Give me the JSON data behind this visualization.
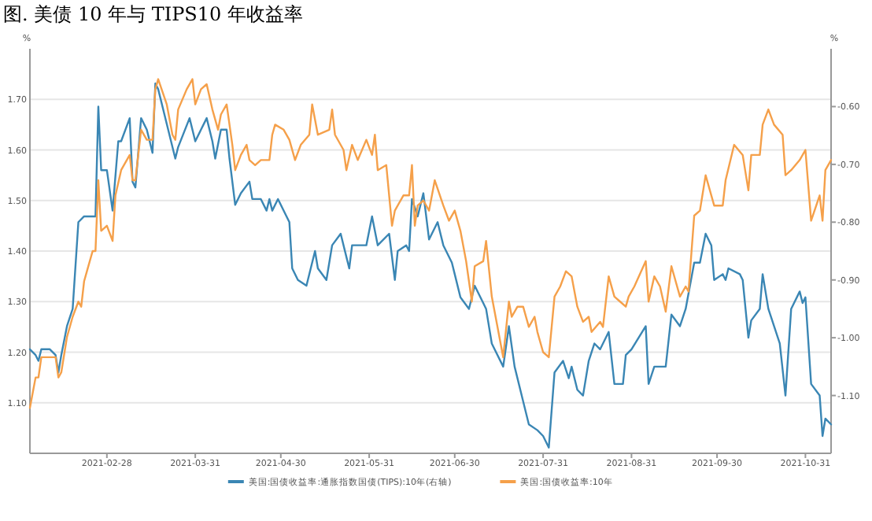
{
  "chart_data": {
    "type": "line",
    "title": "图. 美债 10 年与 TIPS10 年收益率",
    "ylabel": "%",
    "y2label": "%",
    "legend": "bottom",
    "grid": "y",
    "marker": "none",
    "line_style": "solid",
    "xlim": [
      "2021-02-01",
      "2021-11-09"
    ],
    "xticks": [
      "2021-02-28",
      "2021-03-31",
      "2021-04-30",
      "2021-05-31",
      "2021-06-30",
      "2021-07-31",
      "2021-08-31",
      "2021-09-30",
      "2021-10-31"
    ],
    "ylim": [
      1.0,
      1.8
    ],
    "yticks": [
      {
        "value": 1.1,
        "label": "1.10"
      },
      {
        "value": 1.2,
        "label": "1.20"
      },
      {
        "value": 1.3,
        "label": "1.30"
      },
      {
        "value": 1.4,
        "label": "1.40"
      },
      {
        "value": 1.5,
        "label": "1.50"
      },
      {
        "value": 1.6,
        "label": "1.60"
      },
      {
        "value": 1.7,
        "label": "1.70"
      }
    ],
    "y2lim": [
      -1.2,
      -0.5
    ],
    "y2ticks": [
      {
        "value": -1.1,
        "label": "-1.10"
      },
      {
        "value": -1.0,
        "label": "-1.00"
      },
      {
        "value": -0.9,
        "label": "-0.90"
      },
      {
        "value": -0.8,
        "label": "-0.80"
      },
      {
        "value": -0.7,
        "label": "-0.70"
      },
      {
        "value": -0.6,
        "label": "-0.60"
      }
    ],
    "series": [
      {
        "name": "美国:国债收益率:通胀指数国债(TIPS):10年(右轴)",
        "color": "#3a86b4",
        "axis": "y2",
        "x": [
          "2021-02-01",
          "2021-02-03",
          "2021-02-04",
          "2021-02-05",
          "2021-02-08",
          "2021-02-10",
          "2021-02-11",
          "2021-02-12",
          "2021-02-14",
          "2021-02-16",
          "2021-02-18",
          "2021-02-20",
          "2021-02-24",
          "2021-02-25",
          "2021-02-26",
          "2021-02-28",
          "2021-03-02",
          "2021-03-04",
          "2021-03-05",
          "2021-03-08",
          "2021-03-09",
          "2021-03-10",
          "2021-03-12",
          "2021-03-14",
          "2021-03-16",
          "2021-03-17",
          "2021-03-18",
          "2021-03-21",
          "2021-03-24",
          "2021-03-25",
          "2021-03-29",
          "2021-03-31",
          "2021-04-02",
          "2021-04-04",
          "2021-04-06",
          "2021-04-07",
          "2021-04-09",
          "2021-04-11",
          "2021-04-12",
          "2021-04-14",
          "2021-04-16",
          "2021-04-19",
          "2021-04-20",
          "2021-04-23",
          "2021-04-25",
          "2021-04-26",
          "2021-04-27",
          "2021-04-29",
          "2021-05-03",
          "2021-05-04",
          "2021-05-06",
          "2021-05-09",
          "2021-05-12",
          "2021-05-13",
          "2021-05-16",
          "2021-05-18",
          "2021-05-21",
          "2021-05-23",
          "2021-05-24",
          "2021-05-25",
          "2021-05-27",
          "2021-05-30",
          "2021-06-01",
          "2021-06-03",
          "2021-06-07",
          "2021-06-09",
          "2021-06-10",
          "2021-06-13",
          "2021-06-14",
          "2021-06-15",
          "2021-06-17",
          "2021-06-19",
          "2021-06-21",
          "2021-06-24",
          "2021-06-26",
          "2021-06-29",
          "2021-06-30",
          "2021-07-02",
          "2021-07-05",
          "2021-07-07",
          "2021-07-10",
          "2021-07-11",
          "2021-07-13",
          "2021-07-17",
          "2021-07-19",
          "2021-07-21",
          "2021-07-24",
          "2021-07-26",
          "2021-07-29",
          "2021-07-31",
          "2021-08-02",
          "2021-08-04",
          "2021-08-07",
          "2021-08-09",
          "2021-08-10",
          "2021-08-12",
          "2021-08-14",
          "2021-08-16",
          "2021-08-18",
          "2021-08-20",
          "2021-08-23",
          "2021-08-25",
          "2021-08-28",
          "2021-08-29",
          "2021-08-31",
          "2021-09-05",
          "2021-09-06",
          "2021-09-08",
          "2021-09-10",
          "2021-09-12",
          "2021-09-14",
          "2021-09-17",
          "2021-09-19",
          "2021-09-22",
          "2021-09-24",
          "2021-09-26",
          "2021-09-28",
          "2021-09-29",
          "2021-10-02",
          "2021-10-03",
          "2021-10-04",
          "2021-10-08",
          "2021-10-09",
          "2021-10-11",
          "2021-10-12",
          "2021-10-15",
          "2021-10-16",
          "2021-10-18",
          "2021-10-22",
          "2021-10-24",
          "2021-10-26",
          "2021-10-29",
          "2021-10-30",
          "2021-10-31",
          "2021-11-02",
          "2021-11-05",
          "2021-11-06",
          "2021-11-07",
          "2021-11-09"
        ],
        "values": [
          -1.02,
          -1.03,
          -1.04,
          -1.02,
          -1.02,
          -1.03,
          -1.06,
          -1.03,
          -0.98,
          -0.95,
          -0.8,
          -0.79,
          -0.79,
          -0.6,
          -0.71,
          -0.71,
          -0.78,
          -0.66,
          -0.66,
          -0.62,
          -0.73,
          -0.74,
          -0.62,
          -0.64,
          -0.68,
          -0.56,
          -0.57,
          -0.63,
          -0.69,
          -0.67,
          -0.62,
          -0.66,
          -0.64,
          -0.62,
          -0.66,
          -0.69,
          -0.64,
          -0.64,
          -0.69,
          -0.77,
          -0.75,
          -0.73,
          -0.76,
          -0.76,
          -0.78,
          -0.76,
          -0.78,
          -0.76,
          -0.8,
          -0.88,
          -0.9,
          -0.91,
          -0.85,
          -0.88,
          -0.9,
          -0.84,
          -0.82,
          -0.86,
          -0.88,
          -0.84,
          -0.84,
          -0.84,
          -0.79,
          -0.84,
          -0.82,
          -0.9,
          -0.85,
          -0.84,
          -0.85,
          -0.76,
          -0.79,
          -0.75,
          -0.83,
          -0.8,
          -0.84,
          -0.87,
          -0.89,
          -0.93,
          -0.95,
          -0.91,
          -0.94,
          -0.95,
          -1.01,
          -1.05,
          -0.98,
          -1.05,
          -1.11,
          -1.15,
          -1.16,
          -1.17,
          -1.19,
          -1.06,
          -1.04,
          -1.07,
          -1.05,
          -1.09,
          -1.1,
          -1.04,
          -1.01,
          -1.02,
          -0.99,
          -1.08,
          -1.08,
          -1.03,
          -1.02,
          -0.98,
          -1.08,
          -1.05,
          -1.05,
          -1.05,
          -0.96,
          -0.98,
          -0.95,
          -0.87,
          -0.87,
          -0.82,
          -0.84,
          -0.9,
          -0.89,
          -0.9,
          -0.88,
          -0.89,
          -0.9,
          -1.0,
          -0.97,
          -0.95,
          -0.89,
          -0.95,
          -1.01,
          -1.1,
          -0.95,
          -0.92,
          -0.94,
          -0.93,
          -1.08,
          -1.1,
          -1.17,
          -1.14,
          -1.15
        ]
      },
      {
        "name": "美国:国债收益率:10年",
        "color": "#f5a04a",
        "axis": "y",
        "x": [
          "2021-02-01",
          "2021-02-03",
          "2021-02-04",
          "2021-02-05",
          "2021-02-08",
          "2021-02-10",
          "2021-02-11",
          "2021-02-12",
          "2021-02-14",
          "2021-02-16",
          "2021-02-18",
          "2021-02-19",
          "2021-02-20",
          "2021-02-21",
          "2021-02-23",
          "2021-02-24",
          "2021-02-25",
          "2021-02-26",
          "2021-02-28",
          "2021-03-02",
          "2021-03-03",
          "2021-03-05",
          "2021-03-08",
          "2021-03-09",
          "2021-03-10",
          "2021-03-12",
          "2021-03-14",
          "2021-03-16",
          "2021-03-17",
          "2021-03-18",
          "2021-03-21",
          "2021-03-23",
          "2021-03-24",
          "2021-03-25",
          "2021-03-28",
          "2021-03-30",
          "2021-03-31",
          "2021-04-02",
          "2021-04-04",
          "2021-04-06",
          "2021-04-08",
          "2021-04-09",
          "2021-04-11",
          "2021-04-13",
          "2021-04-14",
          "2021-04-16",
          "2021-04-18",
          "2021-04-19",
          "2021-04-21",
          "2021-04-23",
          "2021-04-26",
          "2021-04-27",
          "2021-04-28",
          "2021-05-01",
          "2021-05-03",
          "2021-05-05",
          "2021-05-07",
          "2021-05-10",
          "2021-05-11",
          "2021-05-13",
          "2021-05-17",
          "2021-05-18",
          "2021-05-19",
          "2021-05-22",
          "2021-05-23",
          "2021-05-25",
          "2021-05-27",
          "2021-05-30",
          "2021-06-01",
          "2021-06-02",
          "2021-06-03",
          "2021-06-06",
          "2021-06-08",
          "2021-06-09",
          "2021-06-12",
          "2021-06-14",
          "2021-06-15",
          "2021-06-16",
          "2021-06-17",
          "2021-06-19",
          "2021-06-21",
          "2021-06-23",
          "2021-06-26",
          "2021-06-28",
          "2021-06-30",
          "2021-07-02",
          "2021-07-04",
          "2021-07-06",
          "2021-07-07",
          "2021-07-10",
          "2021-07-11",
          "2021-07-13",
          "2021-07-17",
          "2021-07-19",
          "2021-07-20",
          "2021-07-22",
          "2021-07-24",
          "2021-07-26",
          "2021-07-28",
          "2021-07-29",
          "2021-07-31",
          "2021-08-02",
          "2021-08-04",
          "2021-08-06",
          "2021-08-08",
          "2021-08-10",
          "2021-08-12",
          "2021-08-14",
          "2021-08-16",
          "2021-08-17",
          "2021-08-20",
          "2021-08-21",
          "2021-08-23",
          "2021-08-25",
          "2021-08-27",
          "2021-08-29",
          "2021-08-30",
          "2021-09-01",
          "2021-09-05",
          "2021-09-06",
          "2021-09-08",
          "2021-09-10",
          "2021-09-12",
          "2021-09-14",
          "2021-09-17",
          "2021-09-19",
          "2021-09-20",
          "2021-09-22",
          "2021-09-24",
          "2021-09-26",
          "2021-09-29",
          "2021-10-02",
          "2021-10-03",
          "2021-10-06",
          "2021-10-09",
          "2021-10-11",
          "2021-10-12",
          "2021-10-15",
          "2021-10-16",
          "2021-10-18",
          "2021-10-20",
          "2021-10-23",
          "2021-10-24",
          "2021-10-26",
          "2021-10-29",
          "2021-10-31",
          "2021-11-02",
          "2021-11-05",
          "2021-11-06",
          "2021-11-07",
          "2021-11-09"
        ],
        "values": [
          1.09,
          1.15,
          1.15,
          1.19,
          1.19,
          1.19,
          1.15,
          1.16,
          1.23,
          1.27,
          1.3,
          1.29,
          1.34,
          1.36,
          1.4,
          1.4,
          1.54,
          1.44,
          1.45,
          1.42,
          1.51,
          1.56,
          1.59,
          1.54,
          1.54,
          1.64,
          1.62,
          1.62,
          1.72,
          1.74,
          1.69,
          1.63,
          1.62,
          1.68,
          1.72,
          1.74,
          1.69,
          1.72,
          1.73,
          1.68,
          1.64,
          1.67,
          1.69,
          1.61,
          1.56,
          1.59,
          1.61,
          1.58,
          1.57,
          1.58,
          1.58,
          1.63,
          1.65,
          1.64,
          1.62,
          1.58,
          1.61,
          1.63,
          1.69,
          1.63,
          1.64,
          1.68,
          1.63,
          1.6,
          1.56,
          1.61,
          1.58,
          1.62,
          1.59,
          1.63,
          1.56,
          1.57,
          1.45,
          1.48,
          1.51,
          1.51,
          1.57,
          1.45,
          1.49,
          1.5,
          1.48,
          1.54,
          1.49,
          1.46,
          1.48,
          1.44,
          1.38,
          1.3,
          1.37,
          1.38,
          1.42,
          1.31,
          1.19,
          1.3,
          1.27,
          1.29,
          1.29,
          1.25,
          1.27,
          1.24,
          1.2,
          1.19,
          1.31,
          1.33,
          1.36,
          1.35,
          1.29,
          1.26,
          1.27,
          1.24,
          1.26,
          1.25,
          1.35,
          1.31,
          1.3,
          1.29,
          1.31,
          1.33,
          1.38,
          1.3,
          1.35,
          1.33,
          1.28,
          1.37,
          1.31,
          1.33,
          1.32,
          1.47,
          1.48,
          1.55,
          1.49,
          1.49,
          1.54,
          1.61,
          1.59,
          1.52,
          1.59,
          1.59,
          1.65,
          1.68,
          1.65,
          1.63,
          1.55,
          1.56,
          1.58,
          1.6,
          1.46,
          1.51,
          1.46,
          1.56,
          1.58
        ]
      }
    ]
  }
}
